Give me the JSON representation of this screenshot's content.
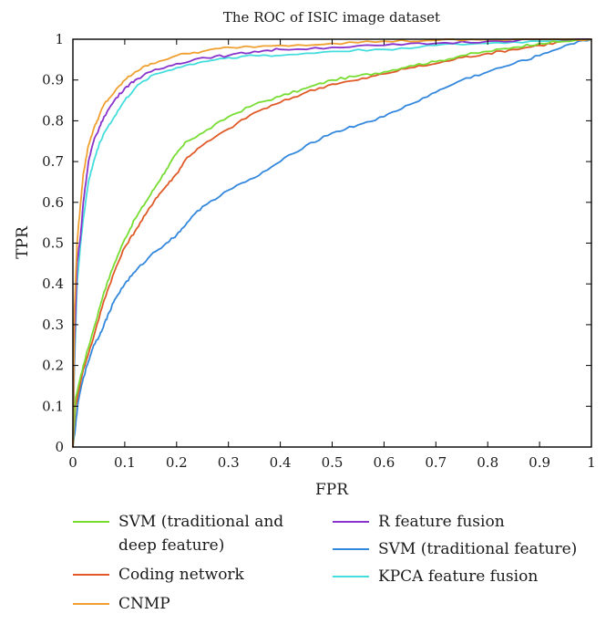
{
  "chart_data": {
    "type": "line",
    "title": "The ROC of ISIC image dataset",
    "xlabel": "FPR",
    "ylabel": "TPR",
    "xlim": [
      0,
      1
    ],
    "ylim": [
      0,
      1
    ],
    "xticks": [
      "0",
      "0.1",
      "0.2",
      "0.3",
      "0.4",
      "0.5",
      "0.6",
      "0.7",
      "0.8",
      "0.9",
      "1"
    ],
    "yticks": [
      "0",
      "0.1",
      "0.2",
      "0.3",
      "0.4",
      "0.5",
      "0.6",
      "0.7",
      "0.8",
      "0.9",
      "1"
    ],
    "grid": false,
    "legend_position": "below",
    "series": [
      {
        "name": "SVM (traditional and deep feature)",
        "legend_lines": [
          "SVM (traditional and",
          "deep feature)"
        ],
        "color": "#77dd33",
        "points": [
          [
            0,
            0
          ],
          [
            0.005,
            0.12
          ],
          [
            0.02,
            0.2
          ],
          [
            0.04,
            0.29
          ],
          [
            0.06,
            0.38
          ],
          [
            0.08,
            0.45
          ],
          [
            0.1,
            0.51
          ],
          [
            0.12,
            0.56
          ],
          [
            0.14,
            0.6
          ],
          [
            0.16,
            0.64
          ],
          [
            0.18,
            0.68
          ],
          [
            0.2,
            0.72
          ],
          [
            0.22,
            0.75
          ],
          [
            0.25,
            0.77
          ],
          [
            0.3,
            0.81
          ],
          [
            0.35,
            0.84
          ],
          [
            0.4,
            0.86
          ],
          [
            0.45,
            0.88
          ],
          [
            0.5,
            0.9
          ],
          [
            0.55,
            0.91
          ],
          [
            0.6,
            0.92
          ],
          [
            0.65,
            0.935
          ],
          [
            0.7,
            0.945
          ],
          [
            0.75,
            0.96
          ],
          [
            0.8,
            0.97
          ],
          [
            0.85,
            0.98
          ],
          [
            0.9,
            0.99
          ],
          [
            0.95,
            0.995
          ],
          [
            1,
            1
          ]
        ]
      },
      {
        "name": "Coding network",
        "legend_lines": [
          "Coding network"
        ],
        "color": "#e05a28",
        "points": [
          [
            0,
            0
          ],
          [
            0.005,
            0.1
          ],
          [
            0.02,
            0.19
          ],
          [
            0.04,
            0.27
          ],
          [
            0.06,
            0.36
          ],
          [
            0.08,
            0.43
          ],
          [
            0.1,
            0.49
          ],
          [
            0.12,
            0.53
          ],
          [
            0.14,
            0.57
          ],
          [
            0.16,
            0.61
          ],
          [
            0.18,
            0.64
          ],
          [
            0.2,
            0.67
          ],
          [
            0.22,
            0.71
          ],
          [
            0.25,
            0.74
          ],
          [
            0.3,
            0.78
          ],
          [
            0.35,
            0.82
          ],
          [
            0.4,
            0.845
          ],
          [
            0.45,
            0.87
          ],
          [
            0.5,
            0.89
          ],
          [
            0.55,
            0.9
          ],
          [
            0.6,
            0.915
          ],
          [
            0.65,
            0.93
          ],
          [
            0.7,
            0.94
          ],
          [
            0.75,
            0.955
          ],
          [
            0.8,
            0.965
          ],
          [
            0.85,
            0.975
          ],
          [
            0.9,
            0.985
          ],
          [
            0.95,
            0.995
          ],
          [
            1,
            1
          ]
        ]
      },
      {
        "name": "CNMP",
        "legend_lines": [
          "CNMP"
        ],
        "color": "#f0a030",
        "points": [
          [
            0,
            0
          ],
          [
            0.003,
            0.34
          ],
          [
            0.008,
            0.5
          ],
          [
            0.015,
            0.6
          ],
          [
            0.02,
            0.67
          ],
          [
            0.03,
            0.74
          ],
          [
            0.04,
            0.78
          ],
          [
            0.05,
            0.81
          ],
          [
            0.06,
            0.84
          ],
          [
            0.08,
            0.87
          ],
          [
            0.1,
            0.9
          ],
          [
            0.12,
            0.92
          ],
          [
            0.15,
            0.94
          ],
          [
            0.2,
            0.96
          ],
          [
            0.25,
            0.97
          ],
          [
            0.3,
            0.98
          ],
          [
            0.4,
            0.985
          ],
          [
            0.5,
            0.99
          ],
          [
            0.6,
            0.995
          ],
          [
            0.7,
            0.997
          ],
          [
            0.8,
            0.999
          ],
          [
            0.9,
            1
          ],
          [
            1,
            1
          ]
        ]
      },
      {
        "name": "R feature fusion",
        "legend_lines": [
          "R feature fusion"
        ],
        "color": "#8833cc",
        "points": [
          [
            0,
            0
          ],
          [
            0.003,
            0.25
          ],
          [
            0.008,
            0.45
          ],
          [
            0.015,
            0.52
          ],
          [
            0.02,
            0.6
          ],
          [
            0.03,
            0.7
          ],
          [
            0.04,
            0.75
          ],
          [
            0.05,
            0.78
          ],
          [
            0.06,
            0.81
          ],
          [
            0.08,
            0.85
          ],
          [
            0.1,
            0.88
          ],
          [
            0.12,
            0.9
          ],
          [
            0.15,
            0.92
          ],
          [
            0.2,
            0.94
          ],
          [
            0.25,
            0.955
          ],
          [
            0.3,
            0.96
          ],
          [
            0.35,
            0.97
          ],
          [
            0.4,
            0.975
          ],
          [
            0.5,
            0.98
          ],
          [
            0.6,
            0.985
          ],
          [
            0.7,
            0.99
          ],
          [
            0.8,
            0.995
          ],
          [
            0.9,
            1
          ],
          [
            1,
            1
          ]
        ]
      },
      {
        "name": "SVM (traditional feature)",
        "legend_lines": [
          "SVM (traditional feature)"
        ],
        "color": "#3388dd",
        "points": [
          [
            0,
            0
          ],
          [
            0.005,
            0.05
          ],
          [
            0.01,
            0.11
          ],
          [
            0.02,
            0.17
          ],
          [
            0.03,
            0.21
          ],
          [
            0.04,
            0.25
          ],
          [
            0.05,
            0.27
          ],
          [
            0.06,
            0.3
          ],
          [
            0.07,
            0.33
          ],
          [
            0.08,
            0.36
          ],
          [
            0.1,
            0.4
          ],
          [
            0.12,
            0.43
          ],
          [
            0.15,
            0.47
          ],
          [
            0.18,
            0.5
          ],
          [
            0.2,
            0.52
          ],
          [
            0.22,
            0.55
          ],
          [
            0.25,
            0.59
          ],
          [
            0.3,
            0.63
          ],
          [
            0.35,
            0.66
          ],
          [
            0.4,
            0.7
          ],
          [
            0.45,
            0.74
          ],
          [
            0.5,
            0.77
          ],
          [
            0.55,
            0.79
          ],
          [
            0.6,
            0.81
          ],
          [
            0.65,
            0.84
          ],
          [
            0.7,
            0.87
          ],
          [
            0.75,
            0.9
          ],
          [
            0.8,
            0.92
          ],
          [
            0.85,
            0.94
          ],
          [
            0.9,
            0.96
          ],
          [
            0.95,
            0.985
          ],
          [
            1,
            1
          ]
        ]
      },
      {
        "name": "KPCA feature fusion",
        "legend_lines": [
          "KPCA feature fusion"
        ],
        "color": "#44dddd",
        "points": [
          [
            0,
            0
          ],
          [
            0.003,
            0.2
          ],
          [
            0.008,
            0.4
          ],
          [
            0.015,
            0.5
          ],
          [
            0.02,
            0.56
          ],
          [
            0.03,
            0.65
          ],
          [
            0.04,
            0.7
          ],
          [
            0.05,
            0.74
          ],
          [
            0.06,
            0.77
          ],
          [
            0.08,
            0.81
          ],
          [
            0.1,
            0.85
          ],
          [
            0.12,
            0.88
          ],
          [
            0.15,
            0.91
          ],
          [
            0.2,
            0.93
          ],
          [
            0.25,
            0.945
          ],
          [
            0.3,
            0.955
          ],
          [
            0.35,
            0.96
          ],
          [
            0.4,
            0.96
          ],
          [
            0.5,
            0.97
          ],
          [
            0.6,
            0.975
          ],
          [
            0.7,
            0.985
          ],
          [
            0.8,
            0.99
          ],
          [
            0.9,
            0.995
          ],
          [
            1,
            1
          ]
        ]
      }
    ]
  }
}
